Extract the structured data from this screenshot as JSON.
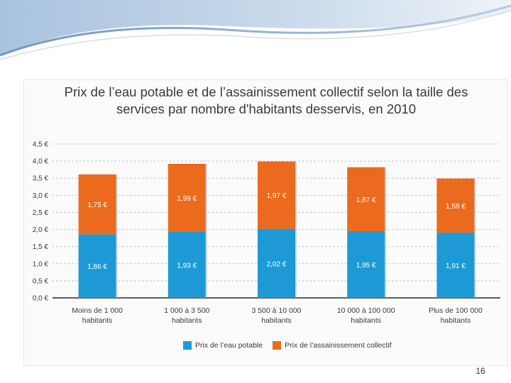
{
  "slide": {
    "page_number": "16"
  },
  "colors": {
    "water": "#1d9ad6",
    "sanitation": "#eb6a1d",
    "axis": "#2b2b2b",
    "grid_dot": "#b8c6d8"
  },
  "chart_data": {
    "type": "bar",
    "stacked": true,
    "title": "Prix de l’eau potable et de l’assainissement collectif selon la taille des services par nombre d'habitants desservis, en 2010",
    "title_lines": [
      "Prix de l’eau potable et de l’assainissement collectif selon la taille des",
      "services par nombre d'habitants desservis, en 2010"
    ],
    "xlabel": "",
    "ylabel": "",
    "ylim": [
      0,
      4.5
    ],
    "y_ticks": [
      {
        "value": 0.0,
        "label": "0,0 €"
      },
      {
        "value": 0.5,
        "label": "0,5 €"
      },
      {
        "value": 1.0,
        "label": "1,0 €"
      },
      {
        "value": 1.5,
        "label": "1,5 €"
      },
      {
        "value": 2.0,
        "label": "2,0 €"
      },
      {
        "value": 2.5,
        "label": "2,5 €"
      },
      {
        "value": 3.0,
        "label": "3,0 €"
      },
      {
        "value": 3.5,
        "label": "3,5 €"
      },
      {
        "value": 4.0,
        "label": "4,0 €"
      },
      {
        "value": 4.5,
        "label": "4,5 €"
      }
    ],
    "categories": [
      [
        "Moins de 1 000",
        "habitants"
      ],
      [
        "1 000 à 3 500",
        "habitants"
      ],
      [
        "3 500 à 10 000",
        "habitants"
      ],
      [
        "10 000 à 100 000",
        "habitants"
      ],
      [
        "Plus de 100 000",
        "habitants"
      ]
    ],
    "series": [
      {
        "name": "Prix de l’eau potable",
        "color": "#1d9ad6",
        "values": [
          1.86,
          1.93,
          2.02,
          1.95,
          1.91
        ],
        "labels": [
          "1,86 €",
          "1,93 €",
          "2,02 €",
          "1,95 €",
          "1,91 €"
        ]
      },
      {
        "name": "Prix de l’assainissement collectif",
        "color": "#eb6a1d",
        "values": [
          1.75,
          1.99,
          1.97,
          1.87,
          1.58
        ],
        "labels": [
          "1,75 €",
          "1,99 €",
          "1,97 €",
          "1,87 €",
          "1,58 €"
        ]
      }
    ],
    "legend_position": "bottom-center"
  }
}
